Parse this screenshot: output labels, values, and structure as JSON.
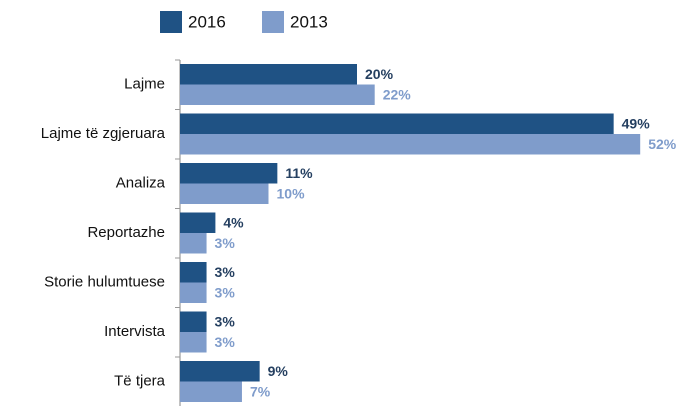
{
  "chart_data": {
    "type": "bar",
    "orientation": "horizontal",
    "categories": [
      "Lajme",
      "Lajme të zgjeruara",
      "Analiza",
      "Reportazhe",
      "Storie hulumtuese",
      "Intervista",
      "Të tjera"
    ],
    "series": [
      {
        "name": "2016",
        "color": "#1f5284",
        "label_color": "#243f60",
        "values": [
          20,
          49,
          11,
          4,
          3,
          3,
          9
        ],
        "value_labels": [
          "20%",
          "49%",
          "11%",
          "4%",
          "3%",
          "3%",
          "9%"
        ]
      },
      {
        "name": "2013",
        "color": "#7f9ccb",
        "label_color": "#7f9ccb",
        "values": [
          22,
          52,
          10,
          3,
          3,
          3,
          7
        ],
        "value_labels": [
          "22%",
          "52%",
          "10%",
          "3%",
          "3%",
          "3%",
          "7%"
        ]
      }
    ],
    "legend": "top"
  }
}
